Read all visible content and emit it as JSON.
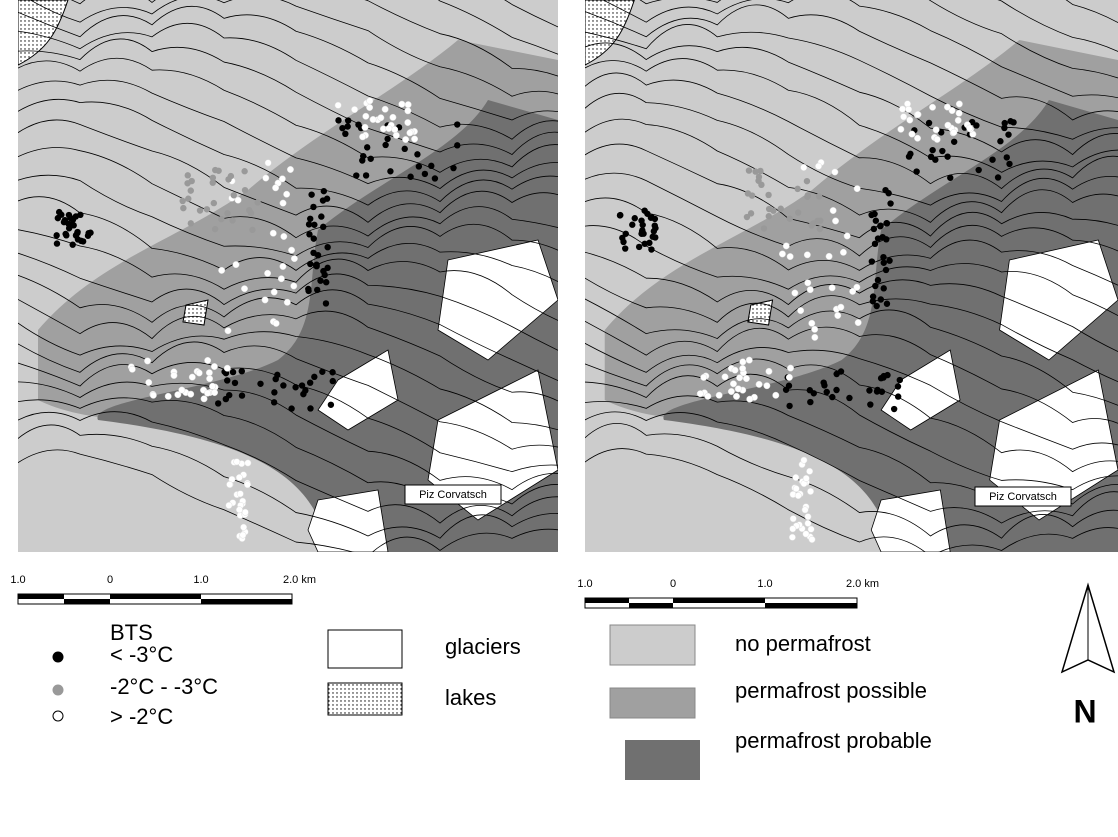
{
  "maps": [
    {
      "peak_label": "Piz Corvatsch",
      "scale_labels": [
        "1.0",
        "0",
        "1.0",
        "2.0 km"
      ]
    },
    {
      "peak_label": "Piz Corvatsch",
      "scale_labels": [
        "1.0",
        "0",
        "1.0",
        "2.0 km"
      ]
    }
  ],
  "legend": {
    "bts_title": "BTS",
    "bts": [
      "< -3°C",
      "-2°C - -3°C",
      "> -2°C"
    ],
    "surfaces": [
      "glaciers",
      "lakes"
    ],
    "permafrost": [
      "no permafrost",
      "permafrost possible",
      "permafrost probable"
    ]
  },
  "north": "N"
}
